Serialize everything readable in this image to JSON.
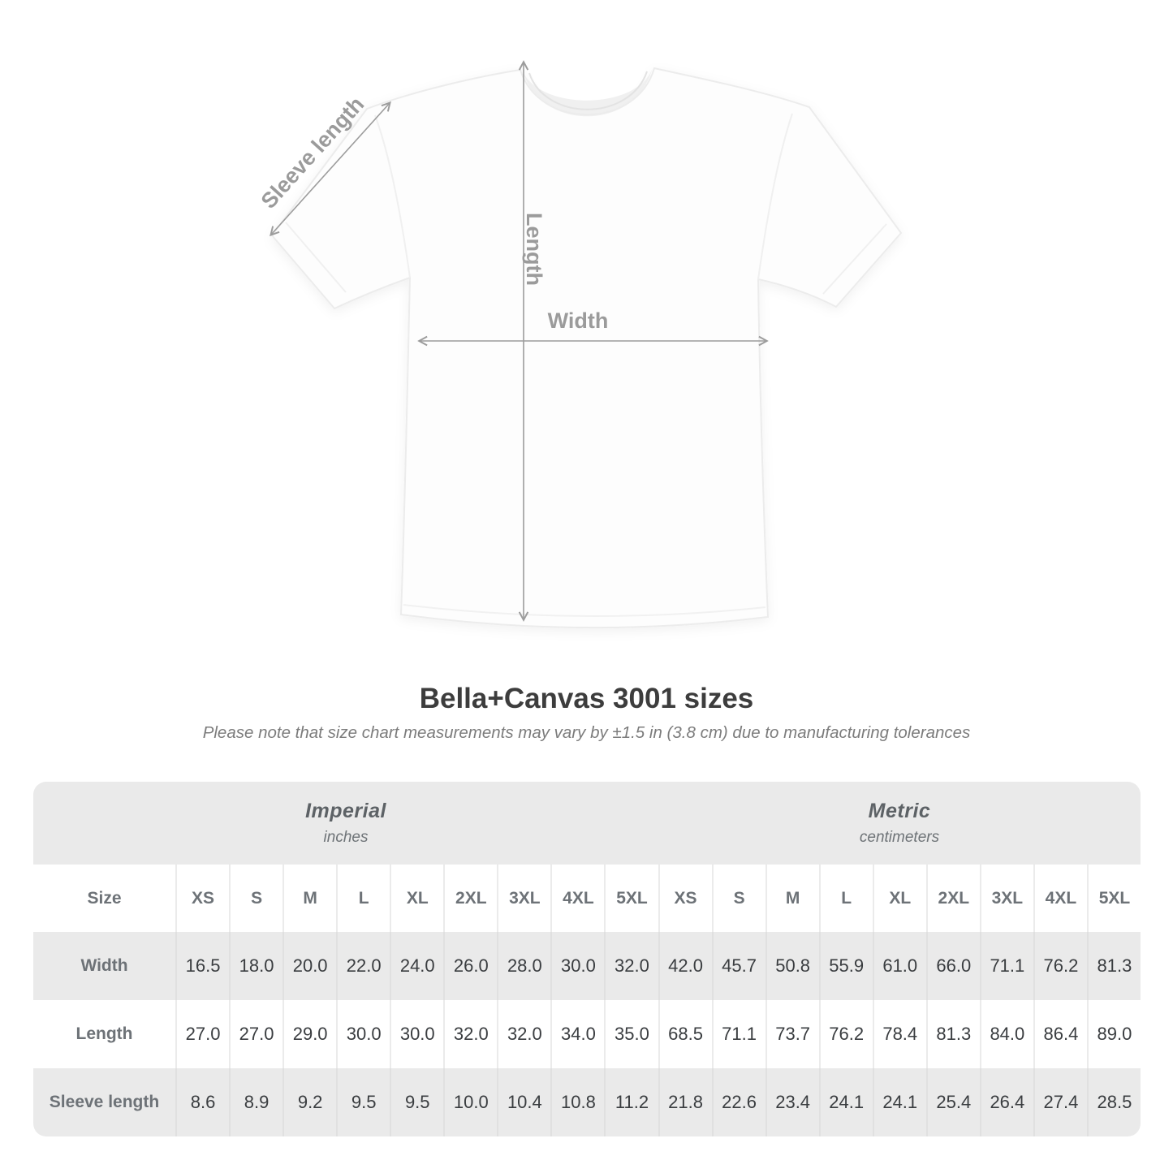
{
  "heading": {
    "title": "Bella+Canvas 3001 sizes",
    "note": "Please note that size chart measurements may vary by ±1.5 in (3.8 cm) due to manufacturing tolerances"
  },
  "diagram": {
    "labels": {
      "sleeve": "Sleeve length",
      "length": "Length",
      "width": "Width"
    }
  },
  "colors": {
    "band_gray": "#eaeaea",
    "arrow_gray": "#9c9c9c",
    "header_text": "#6d7277",
    "value_text": "#3a3d40",
    "title_text": "#3d3d3d"
  },
  "table": {
    "size_label": "Size",
    "unit_groups": [
      {
        "name": "Imperial",
        "unit": "inches"
      },
      {
        "name": "Metric",
        "unit": "centimeters"
      }
    ],
    "sizes": [
      "XS",
      "S",
      "M",
      "L",
      "XL",
      "2XL",
      "3XL",
      "4XL",
      "5XL"
    ],
    "rows": [
      {
        "label": "Width",
        "imperial": [
          "16.5",
          "18.0",
          "20.0",
          "22.0",
          "24.0",
          "26.0",
          "28.0",
          "30.0",
          "32.0"
        ],
        "metric": [
          "42.0",
          "45.7",
          "50.8",
          "55.9",
          "61.0",
          "66.0",
          "71.1",
          "76.2",
          "81.3"
        ]
      },
      {
        "label": "Length",
        "imperial": [
          "27.0",
          "27.0",
          "29.0",
          "30.0",
          "30.0",
          "32.0",
          "32.0",
          "34.0",
          "35.0"
        ],
        "metric": [
          "68.5",
          "71.1",
          "73.7",
          "76.2",
          "78.4",
          "81.3",
          "84.0",
          "86.4",
          "89.0"
        ]
      },
      {
        "label": "Sleeve length",
        "imperial": [
          "8.6",
          "8.9",
          "9.2",
          "9.5",
          "9.5",
          "10.0",
          "10.4",
          "10.8",
          "11.2"
        ],
        "metric": [
          "21.8",
          "22.6",
          "23.4",
          "24.1",
          "24.1",
          "25.4",
          "26.4",
          "27.4",
          "28.5"
        ]
      }
    ]
  },
  "chart_data": {
    "type": "table",
    "title": "Bella+Canvas 3001 sizes",
    "subtitle": "Please note that size chart measurements may vary by ±1.5 in (3.8 cm) due to manufacturing tolerances",
    "column_groups": [
      "Imperial (inches)",
      "Metric (centimeters)"
    ],
    "columns": [
      "Size",
      "XS",
      "S",
      "M",
      "L",
      "XL",
      "2XL",
      "3XL",
      "4XL",
      "5XL",
      "XS",
      "S",
      "M",
      "L",
      "XL",
      "2XL",
      "3XL",
      "4XL",
      "5XL"
    ],
    "rows": [
      [
        "Width",
        16.5,
        18.0,
        20.0,
        22.0,
        24.0,
        26.0,
        28.0,
        30.0,
        32.0,
        42.0,
        45.7,
        50.8,
        55.9,
        61.0,
        66.0,
        71.1,
        76.2,
        81.3
      ],
      [
        "Length",
        27.0,
        27.0,
        29.0,
        30.0,
        30.0,
        32.0,
        32.0,
        34.0,
        35.0,
        68.5,
        71.1,
        73.7,
        76.2,
        78.4,
        81.3,
        84.0,
        86.4,
        89.0
      ],
      [
        "Sleeve length",
        8.6,
        8.9,
        9.2,
        9.5,
        9.5,
        10.0,
        10.4,
        10.8,
        11.2,
        21.8,
        22.6,
        23.4,
        24.1,
        24.1,
        25.4,
        26.4,
        27.4,
        28.5
      ]
    ]
  }
}
